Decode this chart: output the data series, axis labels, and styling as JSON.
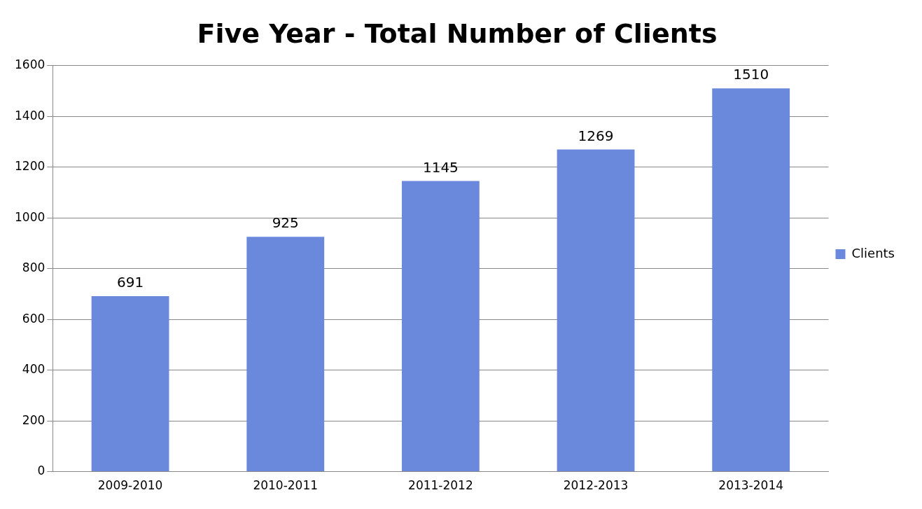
{
  "chart_data": {
    "type": "bar",
    "title": "Five Year - Total Number of Clients",
    "categories": [
      "2009-2010",
      "2010-2011",
      "2011-2012",
      "2012-2013",
      "2013-2014"
    ],
    "series": [
      {
        "name": "Clients",
        "color": "#6a89dd",
        "values": [
          691,
          925,
          1145,
          1269,
          1510
        ]
      }
    ],
    "ylim": [
      0,
      1600
    ],
    "yticks": [
      0,
      200,
      400,
      600,
      800,
      1000,
      1200,
      1400,
      1600
    ],
    "grid": "y",
    "legend": "right",
    "data_labels": true
  }
}
